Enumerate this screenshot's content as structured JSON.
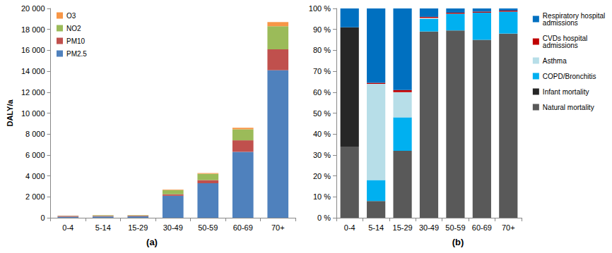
{
  "chart_data": [
    {
      "type": "bar",
      "title": "(a)",
      "y_label": "DALY/a",
      "stacked": true,
      "grid": false,
      "legend": "top-left",
      "categories": [
        "0-4",
        "5-14",
        "15-29",
        "30-49",
        "50-59",
        "60-69",
        "70+"
      ],
      "series": [
        {
          "name": "PM2.5",
          "color": "#4f81bd",
          "values": [
            100,
            120,
            130,
            2100,
            3300,
            6300,
            14100
          ]
        },
        {
          "name": "PM10",
          "color": "#c0504d",
          "values": [
            80,
            60,
            60,
            150,
            300,
            1100,
            2000
          ]
        },
        {
          "name": "NO2",
          "color": "#9bbb59",
          "values": [
            20,
            60,
            50,
            400,
            600,
            1050,
            2200
          ]
        },
        {
          "name": "O3",
          "color": "#f79646",
          "values": [
            5,
            10,
            10,
            50,
            70,
            150,
            400
          ]
        }
      ],
      "ylim": [
        0,
        20000
      ],
      "yticks": [
        0,
        {
          "value": 2000,
          "label": "2 000"
        },
        {
          "value": 4000,
          "label": "4 000"
        },
        {
          "value": 6000,
          "label": "6 000"
        },
        {
          "value": 8000,
          "label": "8 000"
        },
        {
          "value": 10000,
          "label": "10 000"
        },
        {
          "value": 12000,
          "label": "12 000"
        },
        {
          "value": 14000,
          "label": "14 000"
        },
        {
          "value": 16000,
          "label": "16 000"
        },
        {
          "value": 18000,
          "label": "18 000"
        },
        {
          "value": 20000,
          "label": "20 000"
        }
      ]
    },
    {
      "type": "bar",
      "title": "(b)",
      "stacked": true,
      "grid": false,
      "legend": "right",
      "categories": [
        "0-4",
        "5-14",
        "15-29",
        "30-49",
        "50-59",
        "60-69",
        "70+"
      ],
      "series": [
        {
          "name": "Natural mortality",
          "color": "#595959",
          "values": [
            34,
            8,
            32,
            89,
            89.5,
            85,
            88
          ]
        },
        {
          "name": "Infant mortality",
          "color": "#262626",
          "values": [
            57,
            0,
            0,
            0,
            0,
            0,
            0
          ]
        },
        {
          "name": "COPD/Bronchitis",
          "color": "#00b0f0",
          "values": [
            0,
            10,
            16,
            6,
            8,
            13,
            10.5
          ]
        },
        {
          "name": "Asthma",
          "color": "#b7dee8",
          "values": [
            0,
            46,
            12,
            0.5,
            0,
            0,
            0
          ]
        },
        {
          "name": "CVDs hospital admissions",
          "color": "#c00000",
          "values": [
            0,
            0.5,
            1,
            0.5,
            0.5,
            0.5,
            0.5
          ]
        },
        {
          "name": "Respiratory hospital admissions",
          "color": "#0070c0",
          "values": [
            9,
            35.5,
            39,
            4,
            2,
            1.5,
            1
          ]
        }
      ],
      "ylim": [
        0,
        100
      ],
      "yticks": [
        {
          "value": 0,
          "label": "0 %"
        },
        {
          "value": 10,
          "label": "10 %"
        },
        {
          "value": 20,
          "label": "20 %"
        },
        {
          "value": 30,
          "label": "30 %"
        },
        {
          "value": 40,
          "label": "40 %"
        },
        {
          "value": 50,
          "label": "50 %"
        },
        {
          "value": 60,
          "label": "60 %"
        },
        {
          "value": 70,
          "label": "70 %"
        },
        {
          "value": 80,
          "label": "80 %"
        },
        {
          "value": 90,
          "label": "90 %"
        },
        {
          "value": 100,
          "label": "100 %"
        }
      ]
    }
  ]
}
